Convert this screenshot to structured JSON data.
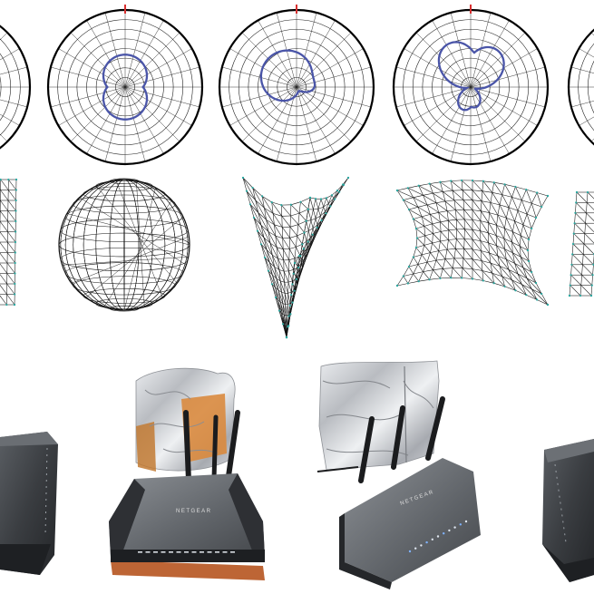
{
  "figure": {
    "row_polar": {
      "panels": [
        "cut-left",
        "omni",
        "single-lobe",
        "multi-lobe",
        "cut-right"
      ]
    },
    "row_mesh": {
      "panels": [
        "cut-left",
        "sphere",
        "v-fold",
        "saddle",
        "cut-right"
      ]
    },
    "row_photos": {
      "panels": [
        "router-bare-left",
        "router-foil-cylinder",
        "router-foil-wall",
        "router-bare-right"
      ],
      "brand": "NETGEAR"
    },
    "colors": {
      "pattern_line": "#4a55a8",
      "grid_line": "#222222",
      "north_marker": "#d83030",
      "mesh_line": "#111111",
      "mesh_node": "#2aa7a0",
      "router_body": "#3a3d41",
      "foil": "#c9ccd1",
      "copper": "#c8752e"
    }
  }
}
